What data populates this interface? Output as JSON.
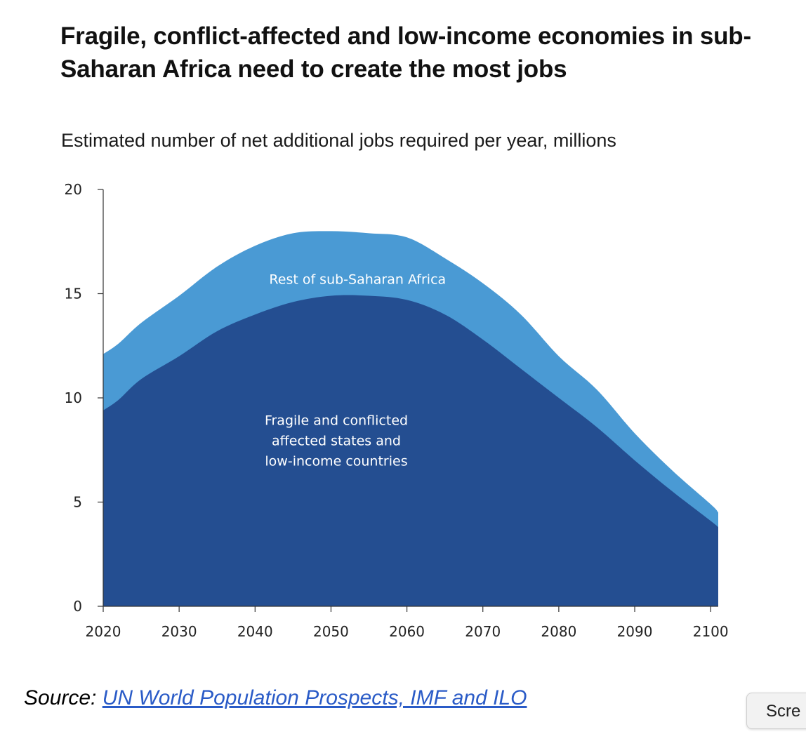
{
  "title": "Fragile, conflict-affected and low-income economies in sub-Saharan Africa need to create the most jobs",
  "subtitle": "Estimated number of net additional jobs required per year, millions",
  "source": {
    "prefix": "Source:",
    "link_text": "UN World Population Prospects, IMF and ILO"
  },
  "screen_button_label": "Scre",
  "chart_data": {
    "type": "area",
    "stacked": true,
    "xlim": [
      2020,
      2101
    ],
    "ylim": [
      0,
      20
    ],
    "x_ticks": [
      2020,
      2030,
      2040,
      2050,
      2060,
      2070,
      2080,
      2090,
      2100
    ],
    "y_ticks": [
      0,
      5,
      10,
      15,
      20
    ],
    "x": [
      2020,
      2022,
      2025,
      2030,
      2035,
      2040,
      2045,
      2050,
      2055,
      2060,
      2065,
      2070,
      2075,
      2080,
      2085,
      2090,
      2095,
      2100,
      2101
    ],
    "series": [
      {
        "name": "Fragile and conflicted affected states and low-income countries",
        "label_lines": [
          "Fragile and conflicted",
          "affected states and",
          "low-income countries"
        ],
        "color": "#244e91",
        "values": [
          9.4,
          9.9,
          10.9,
          12.0,
          13.2,
          14.0,
          14.6,
          14.9,
          14.9,
          14.7,
          14.0,
          12.8,
          11.4,
          10.0,
          8.6,
          7.0,
          5.5,
          4.1,
          3.8
        ]
      },
      {
        "name": "Rest of sub-Saharan Africa",
        "label_lines": [
          "Rest of sub-Saharan Africa"
        ],
        "color": "#4a9ad4",
        "values": [
          2.7,
          2.7,
          2.7,
          2.9,
          3.1,
          3.3,
          3.3,
          3.1,
          3.0,
          3.0,
          2.7,
          2.7,
          2.6,
          2.0,
          1.8,
          1.3,
          1.0,
          0.8,
          0.7
        ]
      }
    ]
  }
}
